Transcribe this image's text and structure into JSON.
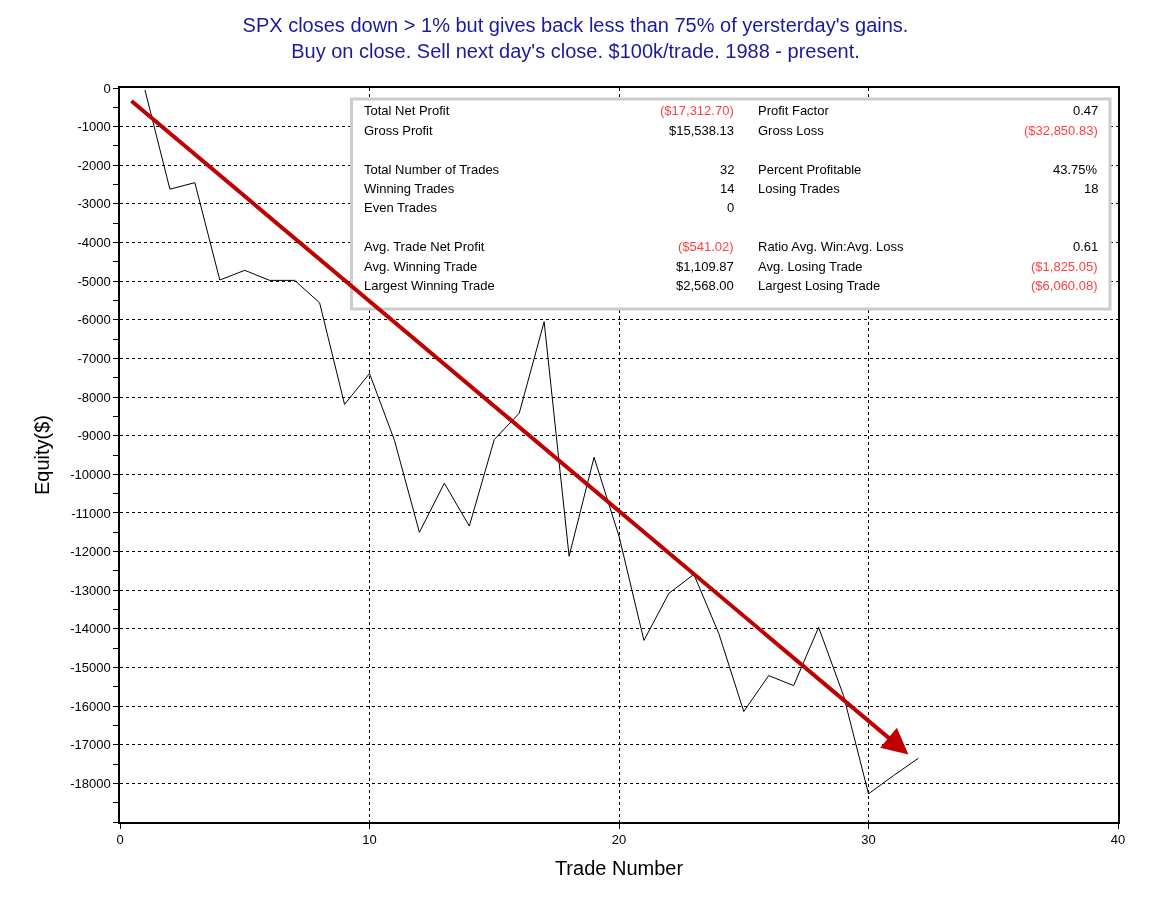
{
  "chart_data": {
    "type": "line",
    "title": "SPX closes down > 1% but gives back less than 75% of yersterday's gains.\nBuy on close. Sell next day's close. $100k/trade. 1988 - present.",
    "xlabel": "Trade Number",
    "ylabel": "Equity($)",
    "x": [
      1,
      2,
      3,
      4,
      5,
      6,
      7,
      8,
      9,
      10,
      11,
      12,
      13,
      14,
      15,
      16,
      17,
      18,
      19,
      20,
      21,
      22,
      23,
      24,
      25,
      26,
      27,
      28,
      29,
      30,
      31,
      32
    ],
    "series": [
      {
        "color": "#000000",
        "values": [
          -50,
          -2620,
          -2450,
          -4970,
          -4720,
          -4980,
          -4980,
          -5560,
          -8190,
          -7390,
          -9120,
          -11500,
          -10230,
          -11340,
          -9100,
          -8420,
          -6050,
          -12120,
          -9560,
          -11600,
          -14300,
          -13080,
          -12590,
          -14120,
          -16140,
          -15210,
          -15470,
          -13960,
          -15730,
          -18270,
          -17800,
          -17350
        ]
      }
    ],
    "xlim": [
      0,
      40
    ],
    "xticks": [
      0,
      10,
      20,
      30,
      40
    ],
    "ylim": [
      -19000,
      0
    ],
    "yticks": [
      0,
      -1000,
      -2000,
      -3000,
      -4000,
      -5000,
      -6000,
      -7000,
      -8000,
      -9000,
      -10000,
      -11000,
      -12000,
      -13000,
      -14000,
      -15000,
      -16000,
      -17000,
      -18000
    ],
    "grid": true,
    "marker": "none",
    "line_style": "solid",
    "annotations": [
      "Total Net Profit",
      "($17,312.70)",
      "Profit Factor",
      "0.47",
      "Gross Profit",
      "$15,538.13",
      "Gross Loss",
      "($32,850.83)",
      "Total Number of Trades",
      "32",
      "Percent Profitable",
      "43.75%",
      "Winning Trades",
      "14",
      "Losing Trades",
      "18",
      "Even Trades",
      "0",
      "Avg. Trade Net Profit",
      "($541.02)",
      "Ratio Avg. Win:Avg. Loss",
      "0.61",
      "Avg. Winning Trade",
      "$1,109.87",
      "Avg. Losing Trade",
      "($1,825.05)",
      "Largest Winning Trade",
      "$2,568.00",
      "Largest Losing Trade",
      "($6,060.08)"
    ]
  }
}
